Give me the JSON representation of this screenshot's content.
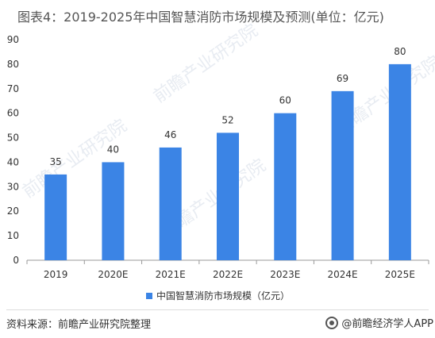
{
  "title": "图表4：2019-2025年中国智慧消防市场规模及预测(单位：亿元)",
  "source": "资料来源：前瞻产业研究院整理",
  "brand": "@前瞻经济学人APP",
  "watermark": "前瞻产业研究院",
  "colors": {
    "bar": "#3B84E5",
    "axis": "#999999",
    "text": "#333333"
  },
  "chart_data": {
    "type": "bar",
    "categories": [
      "2019",
      "2020E",
      "2021E",
      "2022E",
      "2023E",
      "2024E",
      "2025E"
    ],
    "series": [
      {
        "name": "中国智慧消防市场规模（亿元）",
        "values": [
          35,
          40,
          46,
          52,
          60,
          69,
          80
        ]
      }
    ],
    "ylim": [
      0,
      90
    ],
    "yticks": [
      0,
      10,
      20,
      30,
      40,
      50,
      60,
      70,
      80,
      90
    ],
    "grid": false,
    "legend_position": "bottom-center",
    "data_labels": true
  }
}
